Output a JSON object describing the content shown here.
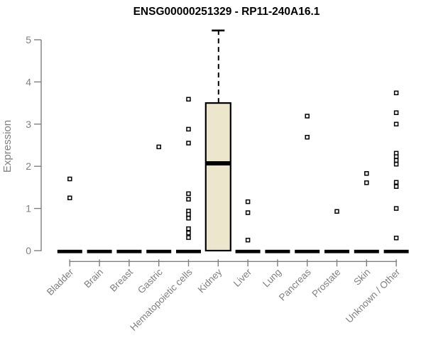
{
  "page": {
    "background": "#ffffff"
  },
  "chart_data": {
    "type": "boxplot",
    "title": "ENSG00000251329 - RP11-240A16.1",
    "ylabel": "Expression",
    "xlabel": "",
    "ylim": [
      0,
      5.25
    ],
    "yticks": [
      0,
      1,
      2,
      3,
      4,
      5
    ],
    "grid": "off",
    "legend": "none",
    "colors": {
      "box_fill": "#ECE6CD",
      "box_border": "#000000",
      "median": "#000000",
      "zero_bar": "#000000",
      "point_stroke": "#000000",
      "point_fill": "#ffffff",
      "axis": "#7f7f7f",
      "tick_label": "#7f7f7f",
      "title": "#000000"
    },
    "categories": [
      "Bladder",
      "Brain",
      "Breast",
      "Gastric",
      "Hematopoietic cells",
      "Kidney",
      "Liver",
      "Lung",
      "Pancreas",
      "Prostate",
      "Skin",
      "Unknown / Other"
    ],
    "groups": [
      {
        "name": "Bladder",
        "zero_bar": true,
        "box": null,
        "points": [
          1.7,
          1.25
        ]
      },
      {
        "name": "Brain",
        "zero_bar": true,
        "box": null,
        "points": []
      },
      {
        "name": "Breast",
        "zero_bar": true,
        "box": null,
        "points": []
      },
      {
        "name": "Gastric",
        "zero_bar": true,
        "box": null,
        "points": [
          2.46
        ]
      },
      {
        "name": "Hematopoietic cells",
        "zero_bar": true,
        "box": null,
        "points": [
          3.59,
          2.88,
          2.55,
          1.35,
          1.22,
          0.94,
          0.86,
          0.77,
          0.52,
          0.42,
          0.31
        ]
      },
      {
        "name": "Kidney",
        "zero_bar": false,
        "box": {
          "q1": 0,
          "median": 2.07,
          "q3": 3.5,
          "whisker_low": 0,
          "whisker_high": 5.22
        },
        "points": []
      },
      {
        "name": "Liver",
        "zero_bar": true,
        "box": null,
        "points": [
          1.16,
          0.9,
          0.25
        ]
      },
      {
        "name": "Lung",
        "zero_bar": true,
        "box": null,
        "points": []
      },
      {
        "name": "Pancreas",
        "zero_bar": true,
        "box": null,
        "points": [
          3.19,
          2.69
        ]
      },
      {
        "name": "Prostate",
        "zero_bar": true,
        "box": null,
        "points": [
          0.93
        ]
      },
      {
        "name": "Skin",
        "zero_bar": true,
        "box": null,
        "points": [
          1.83,
          1.61
        ]
      },
      {
        "name": "Unknown / Other",
        "zero_bar": true,
        "box": null,
        "points": [
          3.74,
          3.27,
          3.0,
          2.31,
          2.23,
          2.14,
          2.05,
          1.62,
          1.52,
          1.0,
          0.3
        ]
      }
    ]
  }
}
